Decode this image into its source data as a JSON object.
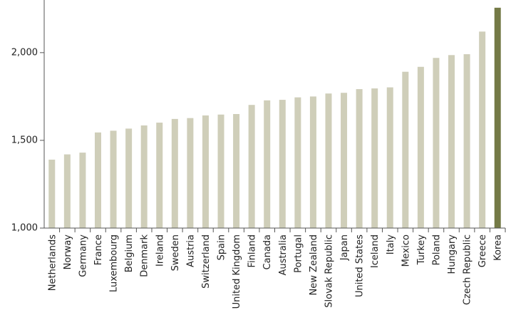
{
  "chart_data": {
    "type": "bar",
    "categories": [
      "Netherlands",
      "Norway",
      "Germany",
      "France",
      "Luxembourg",
      "Belgium",
      "Denmark",
      "Ireland",
      "Sweden",
      "Austria",
      "Switzerland",
      "Spain",
      "United Kingdom",
      "Finland",
      "Canada",
      "Australia",
      "Portugal",
      "New Zealand",
      "Slovak Republic",
      "Japan",
      "United States",
      "Iceland",
      "Italy",
      "Mexico",
      "Turkey",
      "Poland",
      "Hungary",
      "Czech Republic",
      "Greece",
      "Korea"
    ],
    "values": [
      1390,
      1420,
      1430,
      1545,
      1555,
      1567,
      1585,
      1601,
      1622,
      1627,
      1642,
      1647,
      1650,
      1702,
      1728,
      1731,
      1745,
      1750,
      1767,
      1771,
      1792,
      1796,
      1802,
      1891,
      1919,
      1970,
      1986,
      1991,
      2120,
      2256
    ],
    "highlight": [
      "Korea"
    ],
    "ylim": [
      1000,
      2300
    ],
    "yticks": [
      1000,
      1500,
      2000
    ],
    "ytick_labels": [
      "1,000",
      "1,500",
      "2,000"
    ],
    "colors": {
      "bar": "#cfceb9",
      "highlight": "#747a46",
      "axis": "#555555"
    },
    "grid": false,
    "title": "",
    "xlabel": "",
    "ylabel": ""
  }
}
